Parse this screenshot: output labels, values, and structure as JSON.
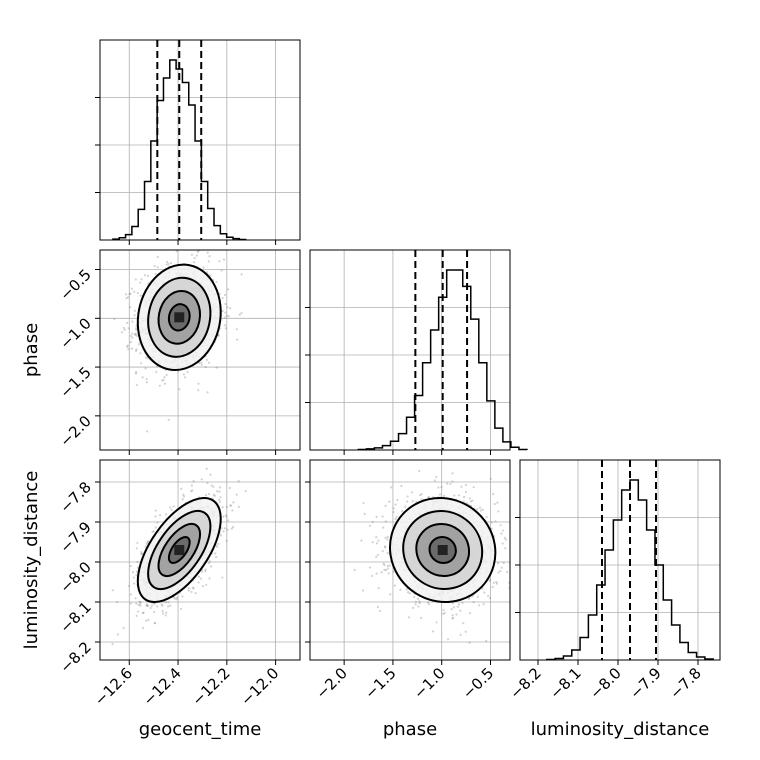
{
  "chart_data": {
    "type": "corner",
    "grid": true,
    "parameters": [
      "geocent_time",
      "phase",
      "luminosity_distance"
    ],
    "axes": {
      "geocent_time": {
        "label": "geocent_time",
        "range": [
          -12.72,
          -11.9
        ],
        "ticks": [
          -12.6,
          -12.4,
          -12.2,
          -12.0
        ],
        "tick_labels": [
          "−12.6",
          "−12.4",
          "−12.2",
          "−12.0"
        ]
      },
      "phase": {
        "label": "phase",
        "range": [
          -2.35,
          -0.3
        ],
        "ticks": [
          -2.0,
          -1.5,
          -1.0,
          -0.5
        ],
        "tick_labels": [
          "−2.0",
          "−1.5",
          "−1.0",
          "−0.5"
        ]
      },
      "luminosity_distance": {
        "label": "luminosity_distance",
        "range": [
          -8.245,
          -7.745
        ],
        "ticks": [
          -8.2,
          -8.1,
          -8.0,
          -7.9,
          -7.8
        ],
        "tick_labels": [
          "−8.2",
          "−8.1",
          "−8.0",
          "−7.9",
          "−7.8"
        ]
      }
    },
    "marginals": {
      "geocent_time": {
        "quantiles": [
          -12.485,
          -12.395,
          -12.305
        ],
        "mean": -12.395,
        "sd": 0.085,
        "counts": [
          2,
          5,
          12,
          30,
          68,
          130,
          220,
          310,
          360,
          400,
          380,
          350,
          300,
          220,
          130,
          70,
          32,
          14,
          6,
          3,
          1
        ]
      },
      "phase": {
        "quantiles": [
          -1.27,
          -0.99,
          -0.74
        ],
        "mean": -0.99,
        "sd": 0.27,
        "counts": [
          1,
          2,
          4,
          8,
          16,
          30,
          60,
          100,
          160,
          220,
          280,
          330,
          330,
          300,
          240,
          160,
          90,
          40,
          15,
          5,
          1
        ]
      },
      "luminosity_distance": {
        "quantiles": [
          -8.04,
          -7.97,
          -7.905
        ],
        "mean": -7.97,
        "sd": 0.065,
        "counts": [
          1,
          3,
          8,
          20,
          45,
          90,
          150,
          220,
          280,
          340,
          360,
          320,
          260,
          190,
          120,
          70,
          35,
          15,
          6,
          2
        ]
      }
    },
    "pairs": [
      {
        "x": "geocent_time",
        "y": "phase",
        "correlation": 0.1
      },
      {
        "x": "geocent_time",
        "y": "luminosity_distance",
        "correlation": 0.6
      },
      {
        "x": "phase",
        "y": "luminosity_distance",
        "correlation": -0.05
      }
    ],
    "colors": {
      "line": "#000000",
      "grid": "#b0b0b0",
      "points": "#7f7f7f",
      "density_fill": "#222222"
    }
  }
}
